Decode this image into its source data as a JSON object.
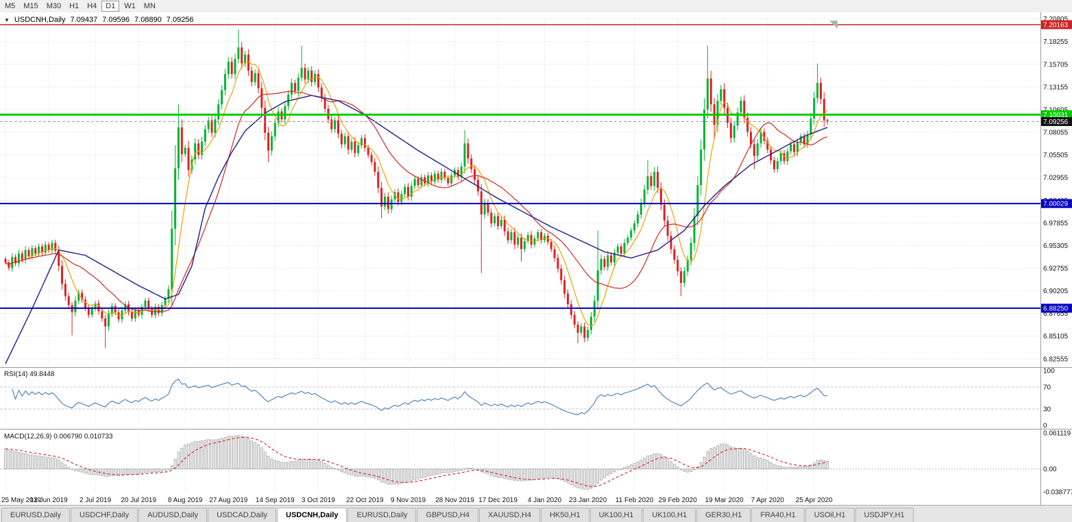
{
  "toolbar": {
    "timeframes": [
      "M5",
      "M15",
      "M30",
      "H1",
      "H4",
      "D1",
      "W1",
      "MN"
    ],
    "active": "D1"
  },
  "chart_header": {
    "symbol": "USDCNH,Daily",
    "open": "7.09437",
    "high": "7.09596",
    "low": "7.08890",
    "close": "7.09256"
  },
  "tabs": {
    "items": [
      "EURUSD,Daily",
      "USDCHF,Daily",
      "AUDUSD,Daily",
      "USDCAD,Daily",
      "USDCNH,Daily",
      "EURUSD,Daily",
      "GBPUSD,H4",
      "XAUUSD,H4",
      "HK50,H1",
      "UK100,H1",
      "UK100,H1",
      "GER30,H1",
      "FRA40,H1",
      "USOil,H1",
      "USDJPY,H1"
    ],
    "active_index": 4
  },
  "chart_data": {
    "type": "candlestick",
    "symbol": "USDCNH",
    "timeframe": "Daily",
    "bg": "#ffffff",
    "grid_color": "#d6d6d6",
    "axis_text_color": "#111111",
    "candle_colors": {
      "up": "#00b432",
      "down": "#e02020"
    },
    "y_axis_ticks": [
      "7.20805",
      "7.18255",
      "7.15705",
      "7.13155",
      "7.10605",
      "7.08055",
      "7.05505",
      "7.02955",
      "7.00405",
      "6.97855",
      "6.95305",
      "6.92755",
      "6.90205",
      "6.87655",
      "6.85105",
      "6.82555"
    ],
    "x_labels": [
      [
        "25 May 2019",
        0
      ],
      [
        "13 Jun 2019",
        13
      ],
      [
        "2 Jul 2019",
        27
      ],
      [
        "20 Jul 2019",
        40
      ],
      [
        "8 Aug 2019",
        54
      ],
      [
        "27 Aug 2019",
        67
      ],
      [
        "14 Sep 2019",
        81
      ],
      [
        "3 Oct 2019",
        94
      ],
      [
        "22 Oct 2019",
        108
      ],
      [
        "9 Nov 2019",
        121
      ],
      [
        "28 Nov 2019",
        135
      ],
      [
        "17 Dec 2019",
        148
      ],
      [
        "4 Jan 2020",
        162
      ],
      [
        "23 Jan 2020",
        175
      ],
      [
        "11 Feb 2020",
        189
      ],
      [
        "29 Feb 2020",
        202
      ],
      [
        "19 Mar 2020",
        216
      ],
      [
        "7 Apr 2020",
        229
      ],
      [
        "25 Apr 2020",
        243
      ]
    ],
    "first_open": 6.938,
    "closes": [
      6.934,
      6.928,
      6.94,
      6.933,
      6.944,
      6.937,
      6.948,
      6.941,
      6.95,
      6.944,
      6.952,
      6.945,
      6.954,
      6.948,
      6.956,
      6.947,
      6.93,
      6.91,
      6.896,
      6.886,
      6.878,
      6.891,
      6.9,
      6.892,
      6.883,
      6.875,
      6.882,
      6.888,
      6.879,
      6.871,
      6.862,
      6.876,
      6.885,
      6.878,
      6.87,
      6.88,
      6.887,
      6.878,
      6.871,
      6.88,
      6.875,
      6.884,
      6.891,
      6.882,
      6.875,
      6.884,
      6.877,
      6.886,
      6.893,
      6.904,
      6.972,
      7.04,
      7.086,
      7.056,
      7.063,
      7.038,
      7.05,
      7.068,
      7.055,
      7.07,
      7.084,
      7.094,
      7.08,
      7.095,
      7.112,
      7.128,
      7.146,
      7.16,
      7.146,
      7.163,
      7.176,
      7.158,
      7.168,
      7.15,
      7.137,
      7.147,
      7.13,
      7.108,
      7.08,
      7.06,
      7.076,
      7.091,
      7.104,
      7.095,
      7.11,
      7.123,
      7.136,
      7.127,
      7.142,
      7.153,
      7.14,
      7.15,
      7.137,
      7.146,
      7.131,
      7.119,
      7.107,
      7.095,
      7.084,
      7.094,
      7.079,
      7.067,
      7.076,
      7.061,
      7.07,
      7.057,
      7.066,
      7.074,
      7.063,
      7.055,
      7.047,
      7.036,
      7.018,
      6.997,
      7.008,
      6.994,
      7.005,
      7.013,
      7.002,
      7.011,
      7.019,
      7.008,
      7.02,
      7.028,
      7.021,
      7.03,
      7.023,
      7.032,
      7.025,
      7.034,
      7.027,
      7.036,
      7.029,
      7.023,
      7.032,
      7.038,
      7.03,
      7.042,
      7.068,
      7.051,
      7.039,
      7.027,
      7.014,
      6.988,
      7.001,
      6.99,
      6.978,
      6.986,
      6.975,
      6.982,
      6.969,
      6.959,
      6.968,
      6.954,
      6.962,
      6.949,
      6.958,
      6.965,
      6.954,
      6.961,
      6.968,
      6.959,
      6.964,
      6.957,
      6.949,
      6.939,
      6.927,
      6.914,
      6.899,
      6.887,
      6.875,
      6.864,
      6.855,
      6.862,
      6.849,
      6.858,
      6.873,
      6.891,
      6.925,
      6.938,
      6.929,
      6.942,
      6.934,
      6.945,
      6.952,
      6.944,
      6.956,
      6.962,
      6.97,
      6.978,
      6.988,
      7.001,
      7.016,
      7.031,
      7.02,
      7.036,
      7.018,
      6.999,
      6.981,
      6.964,
      6.949,
      6.937,
      6.924,
      6.911,
      6.924,
      6.937,
      6.956,
      6.986,
      7.021,
      7.061,
      7.106,
      7.141,
      7.112,
      7.089,
      7.116,
      7.129,
      7.108,
      7.091,
      7.074,
      7.088,
      7.103,
      7.116,
      7.097,
      7.081,
      7.067,
      7.054,
      7.068,
      7.081,
      7.071,
      7.061,
      7.049,
      7.039,
      7.048,
      7.057,
      7.048,
      7.059,
      7.067,
      7.058,
      7.069,
      7.076,
      7.067,
      7.078,
      7.096,
      7.119,
      7.136,
      7.118,
      7.094,
      7.0926
    ],
    "wick_rule": {
      "base": 0.0015,
      "factor": 0.25
    },
    "wick_overrides": {
      "20": {
        "l": 6.852
      },
      "30": {
        "l": 6.838
      },
      "50": {
        "h": 6.992
      },
      "51": {
        "h": 7.066
      },
      "52": {
        "h": 7.112
      },
      "70": {
        "h": 7.196
      },
      "79": {
        "l": 7.047
      },
      "89": {
        "h": 7.178
      },
      "113": {
        "l": 6.984
      },
      "138": {
        "h": 7.083
      },
      "143": {
        "l": 6.922
      },
      "155": {
        "l": 6.935
      },
      "172": {
        "l": 6.843
      },
      "174": {
        "l": 6.844
      },
      "178": {
        "h": 6.97
      },
      "193": {
        "h": 7.049
      },
      "203": {
        "l": 6.896
      },
      "211": {
        "h": 7.178
      },
      "213": {
        "l": 7.072
      },
      "225": {
        "l": 7.039
      },
      "244": {
        "h": 7.158
      },
      "247": {
        "h": 7.09596,
        "l": 7.0889
      }
    },
    "levels": [
      {
        "price": 7.20163,
        "label": "7.20163",
        "color": "#cc2222",
        "width": 1.5
      },
      {
        "price": 7.10031,
        "label": "7.10031",
        "color": "#00cc00",
        "width": 3
      },
      {
        "price": 7.09256,
        "label": "7.09256",
        "color": "#111111",
        "width": 1,
        "dashed": true
      },
      {
        "price": 7.00029,
        "label": "7.00029",
        "color": "#0000bb",
        "width": 2
      },
      {
        "price": 6.8825,
        "label": "6.88250",
        "color": "#0000bb",
        "width": 2
      }
    ],
    "mas": [
      {
        "period": 7,
        "color": "#f0a000"
      },
      {
        "period": 21,
        "color": "#d42424"
      }
    ],
    "slow_ma": {
      "color": "#282890",
      "anchors": [
        [
          0,
          6.82
        ],
        [
          8,
          6.882
        ],
        [
          16,
          6.948
        ],
        [
          24,
          6.942
        ],
        [
          32,
          6.925
        ],
        [
          40,
          6.908
        ],
        [
          48,
          6.893
        ],
        [
          52,
          6.898
        ],
        [
          56,
          6.93
        ],
        [
          60,
          6.995
        ],
        [
          64,
          7.03
        ],
        [
          68,
          7.058
        ],
        [
          72,
          7.082
        ],
        [
          78,
          7.102
        ],
        [
          84,
          7.115
        ],
        [
          92,
          7.122
        ],
        [
          100,
          7.116
        ],
        [
          108,
          7.1
        ],
        [
          116,
          7.08
        ],
        [
          124,
          7.06
        ],
        [
          132,
          7.042
        ],
        [
          140,
          7.024
        ],
        [
          148,
          7.006
        ],
        [
          156,
          6.99
        ],
        [
          164,
          6.974
        ],
        [
          172,
          6.96
        ],
        [
          180,
          6.946
        ],
        [
          188,
          6.939
        ],
        [
          196,
          6.948
        ],
        [
          204,
          6.97
        ],
        [
          210,
          6.998
        ],
        [
          216,
          7.02
        ],
        [
          224,
          7.044
        ],
        [
          232,
          7.06
        ],
        [
          240,
          7.076
        ],
        [
          247,
          7.086
        ]
      ]
    },
    "rsi": {
      "label": "RSI(14) 49.8448",
      "period": 14,
      "color": "#4f86c0",
      "levels": [
        70,
        30
      ],
      "axis_ticks": [
        "100",
        "70",
        "30",
        "0"
      ]
    },
    "macd": {
      "label": "MACD(12,26,9) 0.006790 0.010733",
      "fast": 12,
      "slow": 26,
      "signal_period": 9,
      "fast_seed_offset": -0.012,
      "slow_seed_offset": -0.048,
      "hist_fill": "#ededed",
      "hist_stroke": "#8c8c8c",
      "signal_color": "#d02020",
      "axis_ticks": [
        "0.061119",
        "0.00",
        "-0.038777"
      ]
    }
  }
}
